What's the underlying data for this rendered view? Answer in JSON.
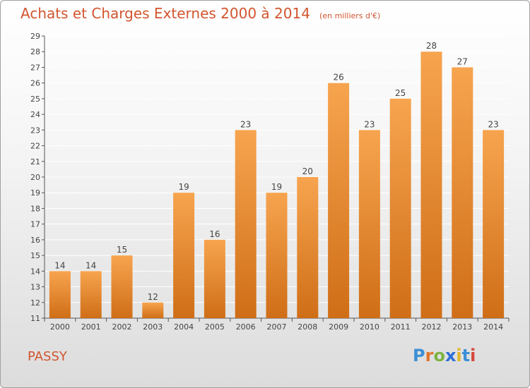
{
  "header": {
    "title": "Achats et Charges Externes 2000 à 2014",
    "subtitle": "(en milliers d'€)"
  },
  "footer": {
    "commune": "PASSY",
    "brand_letters": [
      "P",
      "r",
      "o",
      "x",
      "i",
      "t",
      "i"
    ],
    "brand_colors": [
      "#3b8fd6",
      "#e0742b",
      "#7cb342",
      "#2b6fd6",
      "#e0b62b",
      "#3b8fd6",
      "#d6463b"
    ]
  },
  "chart_data": {
    "type": "bar",
    "title": "Achats et Charges Externes 2000 à 2014",
    "subtitle": "(en milliers d'€)",
    "categories": [
      "2000",
      "2001",
      "2002",
      "2003",
      "2004",
      "2005",
      "2006",
      "2007",
      "2008",
      "2009",
      "2010",
      "2011",
      "2012",
      "2013",
      "2014"
    ],
    "values": [
      14,
      14,
      15,
      12,
      19,
      16,
      23,
      19,
      20,
      26,
      23,
      25,
      28,
      27,
      23
    ],
    "ylim": [
      11,
      29
    ],
    "yticks": [
      11,
      12,
      13,
      14,
      15,
      16,
      17,
      18,
      19,
      20,
      21,
      22,
      23,
      24,
      25,
      26,
      27,
      28,
      29
    ],
    "grid": true,
    "bar_color_top": "#f7a44f",
    "bar_color_bottom": "#cf6e17",
    "label_color": "#444444",
    "grid_color": "#ffffff"
  }
}
